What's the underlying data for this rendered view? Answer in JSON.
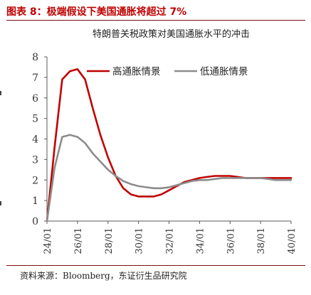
{
  "figure": {
    "title": "图表 8：极端假设下美国通胀将超过 7%",
    "source": "资料来源：Bloomberg，东证衍生品研究院"
  },
  "colors": {
    "accent": "#c00000",
    "high": "#c00000",
    "low": "#8c8c8c",
    "rule": "#7a0f0f"
  },
  "chart_data": {
    "type": "line",
    "title": "特朗普关税政策对美国通胀水平的冲击",
    "xlabel": "",
    "ylabel": "",
    "ylim": [
      0,
      8
    ],
    "yticks": [
      "0",
      "1",
      "2",
      "3",
      "4",
      "5",
      "6",
      "7",
      "8"
    ],
    "xlim": [
      24.0,
      40.0
    ],
    "xticks": [
      "24/01",
      "26/01",
      "28/01",
      "30/01",
      "32/01",
      "34/01",
      "36/01",
      "38/01",
      "40/01"
    ],
    "grid": false,
    "legend": "top",
    "series": [
      {
        "name": "高通胀情景",
        "color": "#c00000",
        "x": [
          24.0,
          24.5,
          25.0,
          25.5,
          26.0,
          26.5,
          27.0,
          27.5,
          28.0,
          28.5,
          29.0,
          29.5,
          30.0,
          30.5,
          31.0,
          31.5,
          32.0,
          32.5,
          33.0,
          33.5,
          34.0,
          34.5,
          35.0,
          35.5,
          36.0,
          36.5,
          37.0,
          37.5,
          38.0,
          38.5,
          39.0,
          39.5,
          40.0
        ],
        "values": [
          0.0,
          3.6,
          6.9,
          7.3,
          7.4,
          6.9,
          5.5,
          4.2,
          3.1,
          2.2,
          1.6,
          1.3,
          1.2,
          1.2,
          1.2,
          1.3,
          1.5,
          1.7,
          1.9,
          2.0,
          2.1,
          2.15,
          2.2,
          2.2,
          2.2,
          2.15,
          2.1,
          2.1,
          2.1,
          2.1,
          2.1,
          2.1,
          2.1
        ]
      },
      {
        "name": "低通胀情景",
        "color": "#8c8c8c",
        "x": [
          24.0,
          24.5,
          25.0,
          25.5,
          26.0,
          26.5,
          27.0,
          27.5,
          28.0,
          28.5,
          29.0,
          29.5,
          30.0,
          30.5,
          31.0,
          31.5,
          32.0,
          32.5,
          33.0,
          33.5,
          34.0,
          34.5,
          35.0,
          35.5,
          36.0,
          36.5,
          37.0,
          37.5,
          38.0,
          38.5,
          39.0,
          39.5,
          40.0
        ],
        "values": [
          0.0,
          2.6,
          4.1,
          4.2,
          4.1,
          3.8,
          3.3,
          2.9,
          2.5,
          2.2,
          1.95,
          1.8,
          1.7,
          1.65,
          1.6,
          1.6,
          1.65,
          1.75,
          1.85,
          1.95,
          2.0,
          2.0,
          2.05,
          2.1,
          2.1,
          2.1,
          2.1,
          2.1,
          2.1,
          2.05,
          2.0,
          2.0,
          2.0
        ]
      }
    ]
  }
}
